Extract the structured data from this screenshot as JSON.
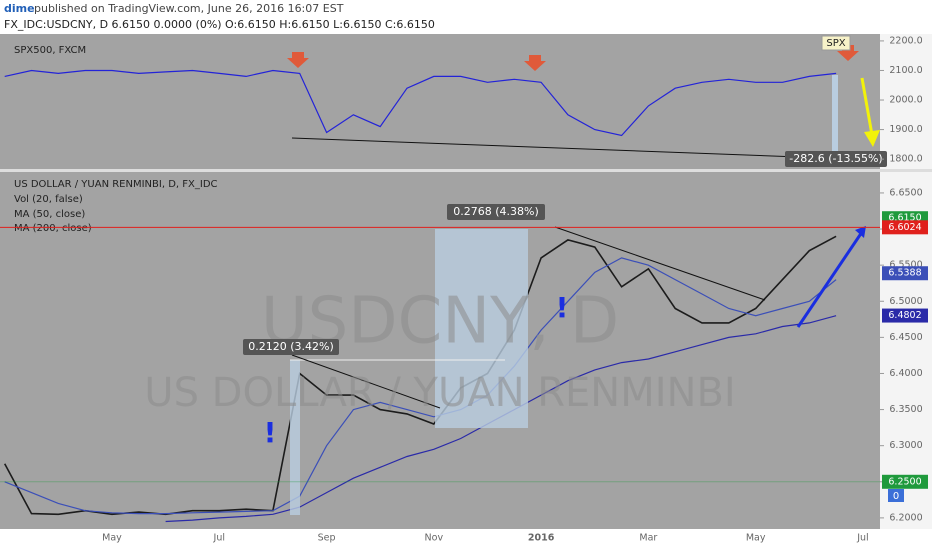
{
  "header": {
    "user": "dime",
    "published": "published on TradingView.com, June 26, 2016 16:07 EST",
    "symbol_line": "FX_IDC:USDCNY, D  6.6150 0.0000 (0%) O:6.6150 H:6.6150 L:6.6150 C:6.6150"
  },
  "chart_data": [
    {
      "type": "line",
      "title": "SPX500, FXCM",
      "series": [
        {
          "color": "#2323d8",
          "values": [
            2080,
            2100,
            2090,
            2100,
            2100,
            2090,
            2095,
            2100,
            2090,
            2080,
            2100,
            2090,
            1890,
            1950,
            1910,
            2040,
            2080,
            2080,
            2060,
            2070,
            2060,
            1950,
            1900,
            1880,
            1980,
            2040,
            2060,
            2070,
            2060,
            2060,
            2080,
            2090,
            null
          ]
        }
      ],
      "ylim": [
        1770,
        2220
      ],
      "yticks": [
        {
          "value": 2200,
          "label": "2200.0"
        },
        {
          "value": 2100,
          "label": "2100.0"
        },
        {
          "value": 2000,
          "label": "2000.0"
        },
        {
          "value": 1900,
          "label": "1900.0"
        },
        {
          "value": 1800,
          "label": "1800.0"
        }
      ],
      "annotations": [
        "SPX",
        "-282.6 (-13.55%)"
      ]
    },
    {
      "type": "line",
      "title": "US DOLLAR / YUAN RENMINBI, D, FX_IDC",
      "volume_label": "Vol (20, false)",
      "volume_value": "0",
      "categories": [
        null,
        null,
        null,
        null,
        "May",
        null,
        null,
        null,
        "Jul",
        null,
        null,
        null,
        "Sep",
        null,
        null,
        null,
        "Nov",
        null,
        null,
        null,
        "2016",
        null,
        null,
        null,
        "Mar",
        null,
        null,
        null,
        "May",
        null,
        null,
        null,
        "Jul"
      ],
      "series": [
        {
          "color": "#1c1c1c",
          "values": [
            6.275,
            6.206,
            6.205,
            6.21,
            6.205,
            6.208,
            6.205,
            6.21,
            6.21,
            6.212,
            6.21,
            6.4,
            6.37,
            6.37,
            6.35,
            6.344,
            6.33,
            6.38,
            6.4,
            6.46,
            6.56,
            6.585,
            6.575,
            6.52,
            6.545,
            6.49,
            6.47,
            6.47,
            6.49,
            6.53,
            6.57,
            6.59,
            null
          ]
        },
        {
          "name": "MA (50, close)",
          "color": "#3b4fb8",
          "values": [
            6.25,
            6.235,
            6.22,
            6.21,
            6.207,
            6.206,
            6.206,
            6.207,
            6.208,
            6.209,
            6.21,
            6.23,
            6.3,
            6.35,
            6.36,
            6.35,
            6.34,
            6.35,
            6.37,
            6.41,
            6.46,
            6.5,
            6.54,
            6.56,
            6.55,
            6.53,
            6.51,
            6.49,
            6.48,
            6.49,
            6.5,
            6.53,
            null
          ]
        },
        {
          "name": "MA (200, close)",
          "color": "#2a2aa8",
          "values": [
            null,
            null,
            null,
            null,
            null,
            null,
            6.195,
            6.197,
            6.2,
            6.202,
            6.205,
            6.215,
            6.235,
            6.255,
            6.27,
            6.285,
            6.295,
            6.31,
            6.33,
            6.35,
            6.37,
            6.39,
            6.405,
            6.415,
            6.42,
            6.43,
            6.44,
            6.45,
            6.455,
            6.465,
            6.47,
            6.48,
            null
          ]
        }
      ],
      "ylim": [
        6.186,
        6.679
      ],
      "yticks": [
        {
          "value": 6.65,
          "label": "6.6500"
        },
        {
          "value": 6.6,
          "label": "6.6000"
        },
        {
          "value": 6.55,
          "label": "6.5500"
        },
        {
          "value": 6.5,
          "label": "6.5000"
        },
        {
          "value": 6.45,
          "label": "6.4500"
        },
        {
          "value": 6.4,
          "label": "6.4000"
        },
        {
          "value": 6.35,
          "label": "6.3500"
        },
        {
          "value": 6.3,
          "label": "6.3000"
        },
        {
          "value": 6.25,
          "label": "6.2500"
        },
        {
          "value": 6.2,
          "label": "6.2000"
        }
      ],
      "price_labels": [
        {
          "value": 6.615,
          "label": "6.6150",
          "color": "#1f9a3c"
        },
        {
          "value": 6.6024,
          "label": "6.6024",
          "color": "#e0201c",
          "hline": true
        },
        {
          "value": 6.5388,
          "label": "6.5388",
          "color": "#3b4fb8"
        },
        {
          "value": 6.4802,
          "label": "6.4802",
          "color": "#2a2aa8"
        },
        {
          "value": 6.25,
          "label": "6.2500",
          "color": "#1f9a3c",
          "hline": true
        }
      ],
      "annotations": [
        "0.2120 (3.42%)",
        "0.2768 (4.38%)"
      ],
      "watermark": [
        "USDCNY, D",
        "US DOLLAR / YUAN RENMINBI"
      ]
    }
  ]
}
